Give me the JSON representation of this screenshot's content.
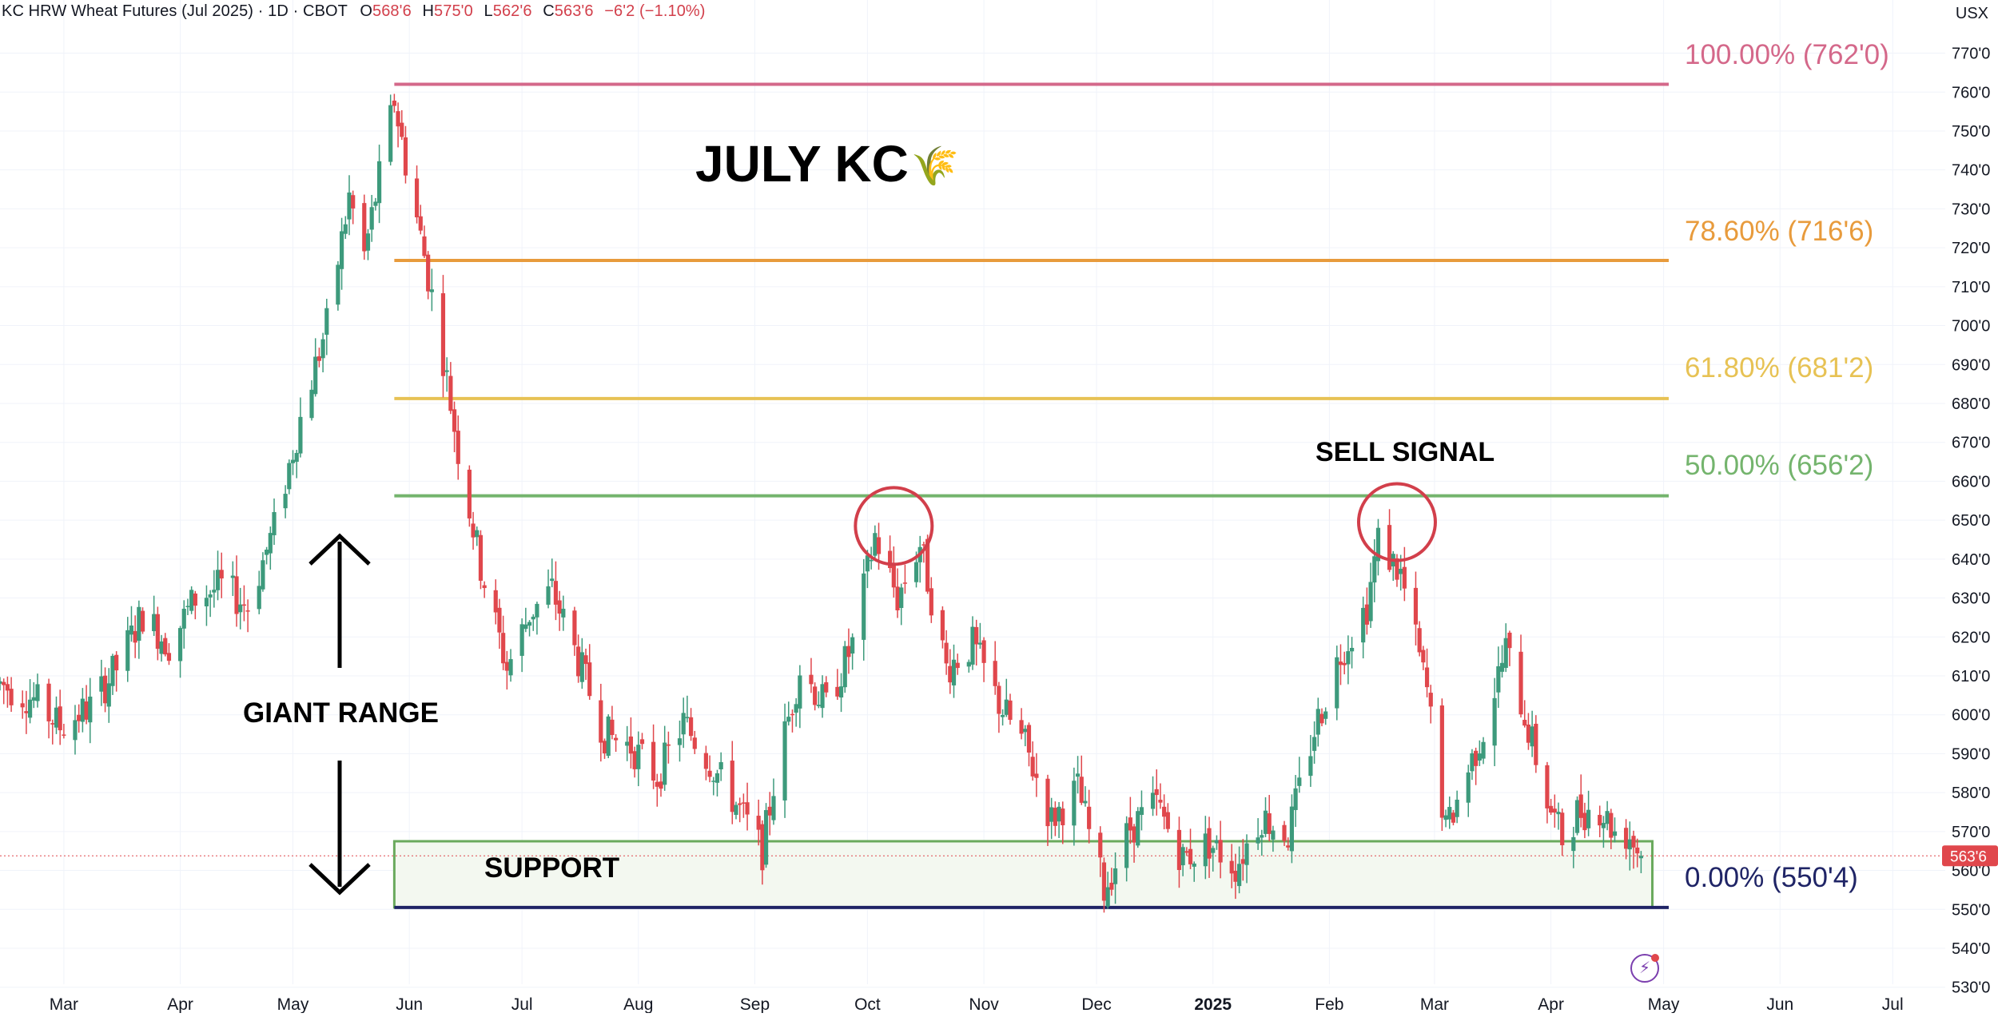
{
  "header": {
    "symbol": "KC HRW Wheat Futures (Jul 2025)",
    "interval": "1D",
    "exchange": "CBOT",
    "open_label": "O",
    "open": "568'6",
    "high_label": "H",
    "high": "575'0",
    "low_label": "L",
    "low": "562'6",
    "close_label": "C",
    "close": "563'6",
    "change": "−6'2 (−1.10%)"
  },
  "unit_label": "USX",
  "price_tag": "563'6",
  "colors": {
    "up": "#3d9a7c",
    "down": "#e0474c",
    "fib_100": "#d4688a",
    "fib_786": "#e89b3c",
    "fib_618": "#e7c254",
    "fib_50": "#74b46d",
    "fib_0": "#1f2466",
    "support_border": "#6aaa5d",
    "support_fill": "#f3f8f0",
    "circle": "#d23f4b"
  },
  "chart_data": {
    "type": "candlestick",
    "y_axis": {
      "range": [
        530,
        772
      ],
      "ticks": [
        530,
        540,
        550,
        560,
        570,
        580,
        590,
        600,
        610,
        620,
        630,
        640,
        650,
        660,
        670,
        680,
        690,
        700,
        710,
        720,
        730,
        740,
        750,
        760,
        770
      ],
      "tick_labels": [
        "530'0",
        "540'0",
        "550'0",
        "560'0",
        "570'0",
        "580'0",
        "590'0",
        "600'0",
        "610'0",
        "620'0",
        "630'0",
        "640'0",
        "650'0",
        "660'0",
        "670'0",
        "680'0",
        "690'0",
        "700'0",
        "710'0",
        "720'0",
        "730'0",
        "740'0",
        "750'0",
        "760'0",
        "770'0"
      ]
    },
    "x_axis": {
      "start": "2024-02-13",
      "end": "2025-07-15",
      "ticks": [
        {
          "date": "2024-03-01",
          "label": "Mar"
        },
        {
          "date": "2024-04-01",
          "label": "Apr"
        },
        {
          "date": "2024-05-01",
          "label": "May"
        },
        {
          "date": "2024-06-01",
          "label": "Jun"
        },
        {
          "date": "2024-07-01",
          "label": "Jul"
        },
        {
          "date": "2024-08-01",
          "label": "Aug"
        },
        {
          "date": "2024-09-01",
          "label": "Sep"
        },
        {
          "date": "2024-10-01",
          "label": "Oct"
        },
        {
          "date": "2024-11-01",
          "label": "Nov"
        },
        {
          "date": "2024-12-01",
          "label": "Dec"
        },
        {
          "date": "2025-01-01",
          "label": "2025",
          "bold": true
        },
        {
          "date": "2025-02-01",
          "label": "Feb"
        },
        {
          "date": "2025-03-01",
          "label": "Mar"
        },
        {
          "date": "2025-04-01",
          "label": "Apr"
        },
        {
          "date": "2025-05-01",
          "label": "May"
        },
        {
          "date": "2025-06-01",
          "label": "Jun"
        },
        {
          "date": "2025-07-01",
          "label": "Jul"
        }
      ]
    },
    "price_path": [
      [
        "2024-02-13",
        608
      ],
      [
        "2024-02-22",
        604
      ],
      [
        "2024-02-29",
        597
      ],
      [
        "2024-03-08",
        602
      ],
      [
        "2024-03-15",
        612
      ],
      [
        "2024-03-22",
        626
      ],
      [
        "2024-03-29",
        618
      ],
      [
        "2024-04-05",
        630
      ],
      [
        "2024-04-12",
        633
      ],
      [
        "2024-04-19",
        628
      ],
      [
        "2024-04-26",
        648
      ],
      [
        "2024-05-03",
        676
      ],
      [
        "2024-05-10",
        700
      ],
      [
        "2024-05-16",
        733
      ],
      [
        "2024-05-20",
        718
      ],
      [
        "2024-05-28",
        758
      ],
      [
        "2024-05-31",
        742
      ],
      [
        "2024-06-05",
        718
      ],
      [
        "2024-06-10",
        692
      ],
      [
        "2024-06-14",
        668
      ],
      [
        "2024-06-20",
        638
      ],
      [
        "2024-06-27",
        612
      ],
      [
        "2024-07-03",
        626
      ],
      [
        "2024-07-09",
        632
      ],
      [
        "2024-07-16",
        614
      ],
      [
        "2024-07-23",
        595
      ],
      [
        "2024-07-30",
        592
      ],
      [
        "2024-08-06",
        584
      ],
      [
        "2024-08-13",
        598
      ],
      [
        "2024-08-20",
        588
      ],
      [
        "2024-08-27",
        577
      ],
      [
        "2024-09-03",
        565
      ],
      [
        "2024-09-06",
        582
      ],
      [
        "2024-09-13",
        612
      ],
      [
        "2024-09-20",
        602
      ],
      [
        "2024-09-27",
        618
      ],
      [
        "2024-10-03",
        646
      ],
      [
        "2024-10-09",
        630
      ],
      [
        "2024-10-15",
        644
      ],
      [
        "2024-10-22",
        612
      ],
      [
        "2024-10-29",
        618
      ],
      [
        "2024-11-05",
        603
      ],
      [
        "2024-11-12",
        592
      ],
      [
        "2024-11-19",
        573
      ],
      [
        "2024-11-26",
        581
      ],
      [
        "2024-12-03",
        555
      ],
      [
        "2024-12-10",
        571
      ],
      [
        "2024-12-17",
        577
      ],
      [
        "2024-12-24",
        563
      ],
      [
        "2024-12-31",
        567
      ],
      [
        "2025-01-07",
        561
      ],
      [
        "2025-01-14",
        574
      ],
      [
        "2025-01-21",
        569
      ],
      [
        "2025-01-28",
        596
      ],
      [
        "2025-02-04",
        616
      ],
      [
        "2025-02-11",
        628
      ],
      [
        "2025-02-14",
        645
      ],
      [
        "2025-02-20",
        636
      ],
      [
        "2025-02-27",
        606
      ],
      [
        "2025-03-04",
        570
      ],
      [
        "2025-03-10",
        586
      ],
      [
        "2025-03-14",
        596
      ],
      [
        "2025-03-20",
        617
      ],
      [
        "2025-03-25",
        600
      ],
      [
        "2025-03-31",
        578
      ],
      [
        "2025-04-04",
        568
      ],
      [
        "2025-04-08",
        575
      ],
      [
        "2025-04-14",
        576
      ],
      [
        "2025-04-18",
        570
      ],
      [
        "2025-04-22",
        569
      ],
      [
        "2025-04-25",
        563.75
      ]
    ],
    "fib_levels": [
      {
        "name": "100.00%",
        "price": 762.0,
        "label": "100.00% (762'0)",
        "color": "#d4688a"
      },
      {
        "name": "78.60%",
        "price": 716.75,
        "label": "78.60% (716'6)",
        "color": "#e89b3c"
      },
      {
        "name": "61.80%",
        "price": 681.25,
        "label": "61.80% (681'2)",
        "color": "#e7c254"
      },
      {
        "name": "50.00%",
        "price": 656.25,
        "label": "50.00% (656'2)",
        "color": "#74b46d"
      },
      {
        "name": "0.00%",
        "price": 550.5,
        "label": "0.00% (550'4)",
        "color": "#1f2466"
      }
    ],
    "fib_range": {
      "start": "2024-05-28",
      "end": "2025-05-03"
    },
    "support_zone": {
      "start": "2024-05-28",
      "end": "2025-04-28",
      "low": 550.5,
      "high": 567.5
    },
    "last_price": 563.75,
    "circles": [
      {
        "date": "2024-10-08",
        "price": 648.5
      },
      {
        "date": "2025-02-19",
        "price": 649.5
      }
    ],
    "annotations": {
      "title": "JULY KC",
      "title_icon": "🌾",
      "sell_signal": "SELL SIGNAL",
      "giant_range": "GIANT RANGE",
      "support": "SUPPORT"
    }
  }
}
